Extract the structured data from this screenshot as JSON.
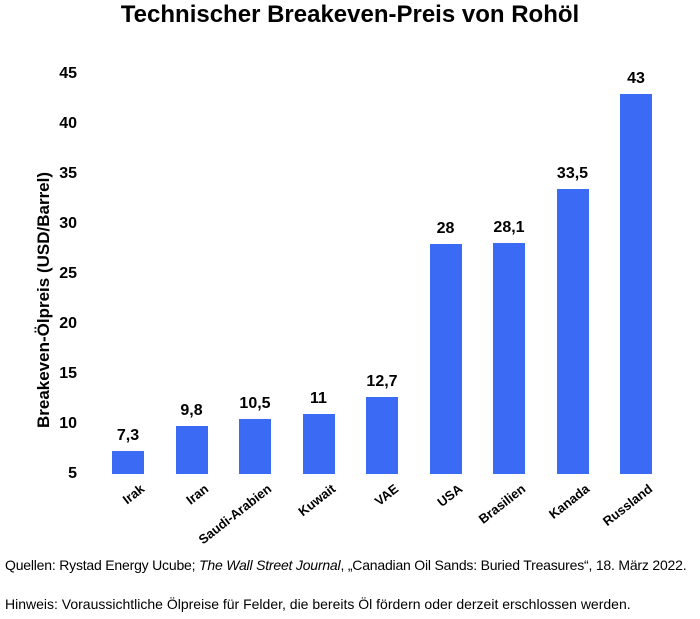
{
  "chart_data": {
    "type": "bar",
    "title": "Technischer Breakeven-Preis von Rohöl",
    "ylabel": "Breakeven-Ölpreis (USD/Barrel)",
    "xlabel": "",
    "categories": [
      "Irak",
      "Iran",
      "Saudi-Arabien",
      "Kuwait",
      "VAE",
      "USA",
      "Brasilien",
      "Kanada",
      "Russland"
    ],
    "values": [
      7.3,
      9.8,
      10.5,
      11,
      12.7,
      28,
      28.1,
      33.5,
      43
    ],
    "value_labels": [
      "7,3",
      "9,8",
      "10,5",
      "11",
      "12,7",
      "28",
      "28,1",
      "33,5",
      "43"
    ],
    "ylim": [
      5,
      45
    ],
    "yticks": [
      5,
      10,
      15,
      20,
      25,
      30,
      35,
      40,
      45
    ],
    "bar_color": "#3b6af5",
    "grid": false,
    "legend": "none",
    "baseline_value": 5
  },
  "footer": {
    "sources_prefix": "Quellen: Rystad Energy Ucube; ",
    "sources_italic": "The Wall Street Journal",
    "sources_suffix": ", „Canadian Oil Sands: Buried Treasures“, 18. März 2022.",
    "note": "Hinweis: Voraussichtliche Ölpreise für Felder, die bereits Öl fördern oder derzeit erschlossen werden."
  }
}
